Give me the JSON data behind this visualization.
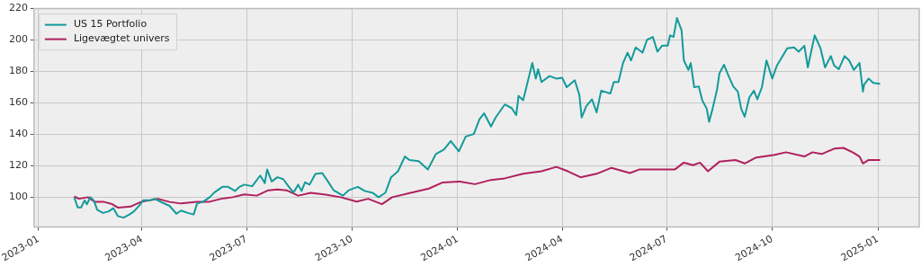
{
  "chart_data": {
    "type": "line",
    "xlim": [
      "2022-12-28",
      "2025-02-06"
    ],
    "ylim": [
      81,
      220
    ],
    "xticks": [
      "2023-01",
      "2023-04",
      "2023-07",
      "2023-10",
      "2024-01",
      "2024-04",
      "2024-07",
      "2024-10",
      "2025-01"
    ],
    "yticks": [
      100,
      120,
      140,
      160,
      180,
      200,
      220
    ],
    "grid": true,
    "legend": "top left",
    "series": [
      {
        "name": "US 15 Portfolio",
        "color": "#139a9a",
        "x": [
          "2023-02-01",
          "2023-02-04",
          "2023-02-07",
          "2023-02-10",
          "2023-02-12",
          "2023-02-15",
          "2023-02-18",
          "2023-02-21",
          "2023-02-26",
          "2023-03-03",
          "2023-03-07",
          "2023-03-11",
          "2023-03-16",
          "2023-03-21",
          "2023-03-25",
          "2023-03-30",
          "2023-04-02",
          "2023-04-08",
          "2023-04-12",
          "2023-04-19",
          "2023-04-25",
          "2023-05-01",
          "2023-05-05",
          "2023-05-11",
          "2023-05-16",
          "2023-05-19",
          "2023-05-24",
          "2023-05-30",
          "2023-06-03",
          "2023-06-10",
          "2023-06-15",
          "2023-06-21",
          "2023-06-25",
          "2023-06-29",
          "2023-07-06",
          "2023-07-13",
          "2023-07-17",
          "2023-07-19",
          "2023-07-23",
          "2023-07-28",
          "2023-08-02",
          "2023-08-07",
          "2023-08-11",
          "2023-08-15",
          "2023-08-18",
          "2023-08-21",
          "2023-08-25",
          "2023-08-30",
          "2023-09-05",
          "2023-09-10",
          "2023-09-15",
          "2023-09-23",
          "2023-09-28",
          "2023-10-06",
          "2023-10-12",
          "2023-10-19",
          "2023-10-24",
          "2023-10-30",
          "2023-11-04",
          "2023-11-10",
          "2023-11-16",
          "2023-11-20",
          "2023-11-28",
          "2023-12-06",
          "2023-12-13",
          "2023-12-20",
          "2023-12-26",
          "2024-01-02",
          "2024-01-08",
          "2024-01-15",
          "2024-01-20",
          "2024-01-24",
          "2024-01-30",
          "2024-02-03",
          "2024-02-11",
          "2024-02-17",
          "2024-02-21",
          "2024-02-23",
          "2024-02-27",
          "2024-03-01",
          "2024-03-06",
          "2024-03-09",
          "2024-03-11",
          "2024-03-14",
          "2024-03-21",
          "2024-03-27",
          "2024-04-01",
          "2024-04-05",
          "2024-04-12",
          "2024-04-16",
          "2024-04-18",
          "2024-04-22",
          "2024-04-27",
          "2024-05-01",
          "2024-05-05",
          "2024-05-13",
          "2024-05-16",
          "2024-05-20",
          "2024-05-24",
          "2024-05-28",
          "2024-05-31",
          "2024-06-04",
          "2024-06-10",
          "2024-06-14",
          "2024-06-19",
          "2024-06-23",
          "2024-06-27",
          "2024-07-02",
          "2024-07-04",
          "2024-07-07",
          "2024-07-10",
          "2024-07-14",
          "2024-07-16",
          "2024-07-20",
          "2024-07-22",
          "2024-07-25",
          "2024-07-29",
          "2024-08-01",
          "2024-08-05",
          "2024-08-07",
          "2024-08-10",
          "2024-08-14",
          "2024-08-16",
          "2024-08-20",
          "2024-08-23",
          "2024-08-28",
          "2024-09-01",
          "2024-09-04",
          "2024-09-07",
          "2024-09-11",
          "2024-09-15",
          "2024-09-18",
          "2024-09-22",
          "2024-09-26",
          "2024-10-01",
          "2024-10-05",
          "2024-10-10",
          "2024-10-14",
          "2024-10-20",
          "2024-10-24",
          "2024-10-29",
          "2024-11-01",
          "2024-11-05",
          "2024-11-07",
          "2024-11-12",
          "2024-11-16",
          "2024-11-21",
          "2024-11-24",
          "2024-11-28",
          "2024-12-03",
          "2024-12-07",
          "2024-12-11",
          "2024-12-16",
          "2024-12-19",
          "2024-12-20",
          "2024-12-24",
          "2024-12-28",
          "2025-01-03"
        ],
        "values": [
          100,
          93.5,
          93.5,
          98,
          95.5,
          100,
          98,
          92,
          90,
          91,
          93,
          88,
          87,
          89,
          91,
          95,
          98,
          98,
          99,
          96.5,
          94.5,
          89.5,
          91.5,
          90,
          89,
          96,
          97,
          100,
          103,
          106.6,
          106.6,
          104,
          106.6,
          108,
          107,
          113.8,
          109,
          117.6,
          110,
          112.7,
          111.5,
          106.6,
          103,
          108,
          104,
          109.5,
          108,
          114.8,
          115.4,
          110,
          104.4,
          101,
          104.4,
          106.6,
          104,
          102.8,
          100,
          102.8,
          112.7,
          116.5,
          125.9,
          123.7,
          123,
          117.6,
          127.5,
          130.3,
          135.8,
          129.2,
          138.6,
          140.2,
          149.6,
          153.4,
          145,
          150.7,
          159,
          156.7,
          152.3,
          164.5,
          161.7,
          170.5,
          185.4,
          175.5,
          181.5,
          173.3,
          177.1,
          175.5,
          176,
          170,
          174.4,
          165,
          150.7,
          157.9,
          162.3,
          154,
          167.8,
          166,
          173.3,
          173.3,
          185.4,
          192,
          187,
          195.3,
          192,
          200.3,
          202,
          192.6,
          196.4,
          196.4,
          203,
          202,
          214,
          206.3,
          187,
          181,
          185.4,
          170,
          170.5,
          161.7,
          156.2,
          148,
          156.2,
          168.9,
          178.8,
          184.3,
          178.8,
          170.5,
          167.2,
          156.2,
          151.2,
          163.4,
          167.8,
          162.3,
          170,
          187,
          175.5,
          183.7,
          189.8,
          194.8,
          195.3,
          192.6,
          196.4,
          182.6,
          196.4,
          203,
          194.8,
          182.6,
          189.8,
          183.7,
          181.5,
          189.8,
          187,
          181,
          185.4,
          167.2,
          171.6,
          175.5,
          172.7,
          172.2
        ]
      },
      {
        "name": "Ligevægtet univers",
        "color": "#b0205e",
        "x": [
          "2023-02-01",
          "2023-02-05",
          "2023-02-13",
          "2023-02-19",
          "2023-02-27",
          "2023-03-06",
          "2023-03-11",
          "2023-03-22",
          "2023-03-31",
          "2023-04-15",
          "2023-04-25",
          "2023-05-05",
          "2023-05-19",
          "2023-05-29",
          "2023-06-09",
          "2023-06-19",
          "2023-06-29",
          "2023-07-10",
          "2023-07-20",
          "2023-07-28",
          "2023-08-05",
          "2023-08-15",
          "2023-08-26",
          "2023-09-08",
          "2023-09-21",
          "2023-10-05",
          "2023-10-15",
          "2023-10-27",
          "2023-11-05",
          "2023-11-21",
          "2023-12-07",
          "2023-12-19",
          "2024-01-03",
          "2024-01-16",
          "2024-01-30",
          "2024-02-11",
          "2024-02-27",
          "2024-03-14",
          "2024-03-27",
          "2024-04-06",
          "2024-04-17",
          "2024-05-01",
          "2024-05-14",
          "2024-05-30",
          "2024-06-07",
          "2024-06-19",
          "2024-07-08",
          "2024-07-16",
          "2024-07-24",
          "2024-07-30",
          "2024-08-06",
          "2024-08-16",
          "2024-08-30",
          "2024-09-07",
          "2024-09-17",
          "2024-10-03",
          "2024-10-13",
          "2024-10-29",
          "2024-11-05",
          "2024-11-13",
          "2024-11-24",
          "2024-12-02",
          "2024-12-10",
          "2024-12-16",
          "2024-12-19",
          "2024-12-24",
          "2025-01-03"
        ],
        "values": [
          100.5,
          99,
          100,
          97,
          97,
          95.6,
          93.4,
          94,
          97,
          99,
          97,
          96,
          97,
          97,
          99,
          100,
          101.8,
          101,
          104.4,
          105,
          104.4,
          101,
          102.8,
          101.7,
          100,
          97.2,
          99,
          95.6,
          100,
          102.8,
          105.5,
          109.4,
          110,
          108.3,
          111,
          112,
          114.9,
          116.5,
          119.3,
          116.5,
          112.7,
          114.9,
          118.7,
          115.4,
          117.6,
          117.6,
          117.6,
          122,
          120.4,
          122,
          116.5,
          122.6,
          123.7,
          121.5,
          125.3,
          127,
          128.6,
          125.9,
          128.6,
          127.5,
          130.9,
          131.4,
          128.6,
          125.9,
          121.5,
          123.7,
          123.7
        ]
      }
    ]
  }
}
